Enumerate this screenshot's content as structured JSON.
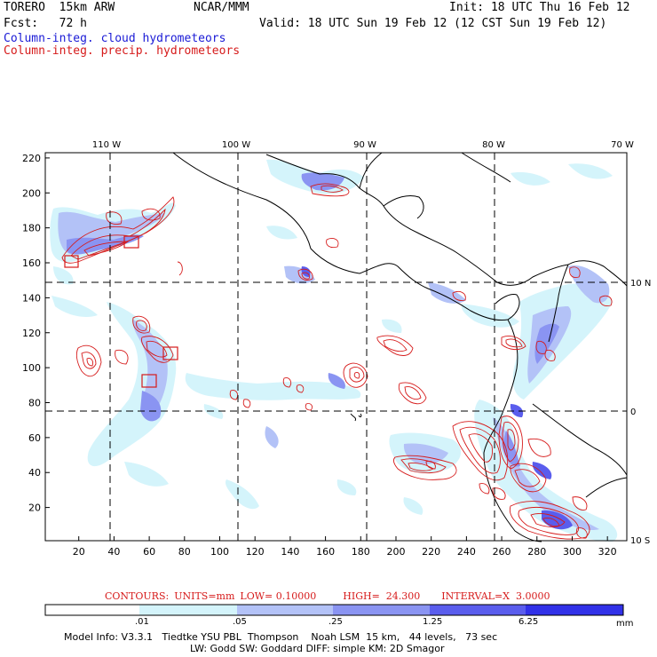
{
  "header": {
    "model": "TORERO  15km ARW",
    "center": "NCAR/MMM",
    "init": "Init: 18 UTC Thu 16 Feb 12",
    "fcst": "Fcst:   72 h",
    "valid": "Valid: 18 UTC Sun 19 Feb 12 (12 CST Sun 19 Feb 12)",
    "field1": "Column-integ. cloud hydrometeors",
    "field2": "Column-integ. precip. hydrometeors"
  },
  "colors": {
    "cloud_label": "#1a1ad6",
    "precip_label": "#d61a1a",
    "shade_levels": [
      "#ffffff",
      "#d4f4fb",
      "#b3c2f7",
      "#8a94f2",
      "#5a5ded",
      "#3131e8"
    ]
  },
  "map": {
    "lon_labels": [
      "110 W",
      "100 W",
      "90 W",
      "80 W",
      "70 W"
    ],
    "lat_labels": [
      "10 N",
      "0",
      "10 S"
    ],
    "x_ticks": [
      "20",
      "40",
      "60",
      "80",
      "100",
      "120",
      "140",
      "160",
      "180",
      "200",
      "220",
      "240",
      "260",
      "280",
      "300",
      "320"
    ],
    "y_ticks": [
      "20",
      "40",
      "60",
      "80",
      "100",
      "120",
      "140",
      "160",
      "180",
      "200",
      "220"
    ],
    "x_range": [
      1,
      331
    ],
    "y_range": [
      1,
      223
    ]
  },
  "contour_info": {
    "label": "CONTOURS:",
    "units": "UNITS=mm",
    "low": "LOW= 0.10000",
    "high": "HIGH=  24.300",
    "interval": "INTERVAL=X  3.0000"
  },
  "colorbar": {
    "ticks": [
      ".01",
      ".05",
      ".25",
      "1.25",
      "6.25"
    ],
    "unit": "mm"
  },
  "footer": {
    "line1": "Model Info: V3.3.1   Tiedtke YSU PBL  Thompson    Noah LSM  15 km,   44 levels,   73 sec",
    "line2": "LW: Godd SW: Goddard DIFF: simple KM: 2D Smagor"
  }
}
